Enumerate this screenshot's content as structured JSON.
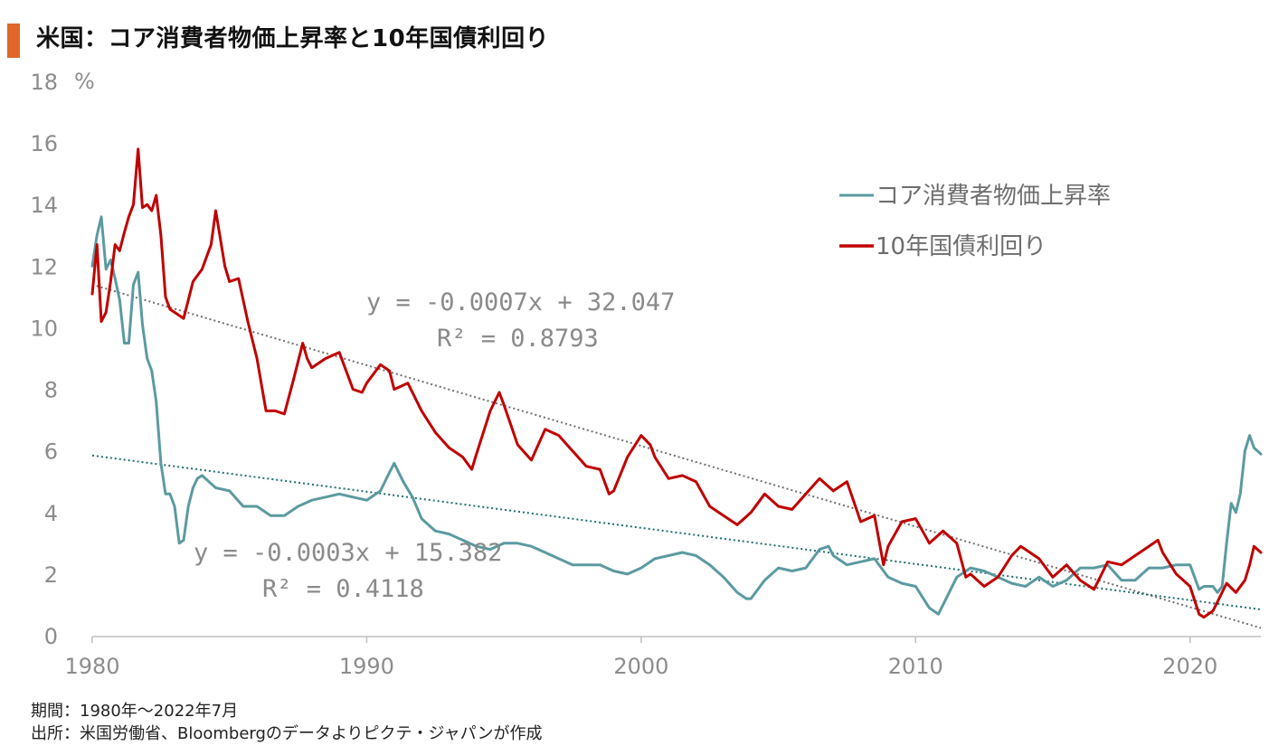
{
  "title": "米国：コア消費者物価上昇率と10年国債利回り",
  "footnotes": {
    "period": "期間：1980年～2022年7月",
    "source": "出所：米国労働省、Bloombergのデータよりピクテ・ジャパンが作成"
  },
  "colors": {
    "title_accent": "#e0662a",
    "core_cpi": "#5b9aa0",
    "treasury_10y": "#c00000",
    "trend_cpi": "#1f6f6f",
    "trend_10y": "#6f6f6f"
  },
  "chart_data": {
    "type": "line",
    "title": "米国：コア消費者物価上昇率と10年国債利回り",
    "ylabel": "%",
    "ylim": [
      0,
      18
    ],
    "yticks": [
      0,
      2,
      4,
      6,
      8,
      10,
      12,
      14,
      16,
      18
    ],
    "xlim": [
      1980,
      2022.58
    ],
    "xticks": [
      1980,
      1990,
      2000,
      2010,
      2020
    ],
    "grid": false,
    "legend_position": "top-right",
    "series": [
      {
        "name": "コア消費者物価上昇率",
        "color": "#5b9aa0",
        "x": [
          1980.0,
          1980.17,
          1980.33,
          1980.5,
          1980.67,
          1980.83,
          1981.0,
          1981.17,
          1981.33,
          1981.5,
          1981.67,
          1981.83,
          1982.0,
          1982.17,
          1982.33,
          1982.5,
          1982.67,
          1982.83,
          1983.0,
          1983.17,
          1983.33,
          1983.5,
          1983.67,
          1983.83,
          1984.0,
          1984.5,
          1985.0,
          1985.5,
          1986.0,
          1986.5,
          1987.0,
          1987.5,
          1988.0,
          1988.5,
          1989.0,
          1989.5,
          1990.0,
          1990.5,
          1990.83,
          1991.0,
          1991.33,
          1991.67,
          1992.0,
          1992.5,
          1993.0,
          1993.5,
          1994.0,
          1994.5,
          1995.0,
          1995.5,
          1996.0,
          1996.5,
          1997.0,
          1997.5,
          1998.0,
          1998.5,
          1999.0,
          1999.5,
          2000.0,
          2000.5,
          2001.0,
          2001.5,
          2002.0,
          2002.5,
          2003.0,
          2003.5,
          2003.83,
          2004.0,
          2004.5,
          2005.0,
          2005.5,
          2006.0,
          2006.5,
          2006.83,
          2007.0,
          2007.5,
          2008.0,
          2008.5,
          2009.0,
          2009.5,
          2010.0,
          2010.5,
          2010.83,
          2011.0,
          2011.5,
          2012.0,
          2012.5,
          2013.0,
          2013.5,
          2014.0,
          2014.5,
          2015.0,
          2015.5,
          2016.0,
          2016.5,
          2017.0,
          2017.5,
          2018.0,
          2018.5,
          2019.0,
          2019.5,
          2020.0,
          2020.33,
          2020.5,
          2020.83,
          2021.0,
          2021.17,
          2021.33,
          2021.5,
          2021.67,
          2021.83,
          2022.0,
          2022.17,
          2022.33,
          2022.58
        ],
        "values": [
          12.0,
          13.0,
          13.6,
          11.9,
          12.2,
          11.6,
          10.9,
          9.5,
          9.5,
          11.4,
          11.8,
          10.1,
          9.0,
          8.6,
          7.6,
          5.6,
          4.6,
          4.6,
          4.2,
          3.0,
          3.1,
          4.2,
          4.8,
          5.1,
          5.2,
          4.8,
          4.7,
          4.2,
          4.2,
          3.9,
          3.9,
          4.2,
          4.4,
          4.5,
          4.6,
          4.5,
          4.4,
          4.7,
          5.3,
          5.6,
          5.0,
          4.5,
          3.8,
          3.4,
          3.3,
          3.1,
          2.9,
          2.8,
          3.0,
          3.0,
          2.9,
          2.7,
          2.5,
          2.3,
          2.3,
          2.3,
          2.1,
          2.0,
          2.2,
          2.5,
          2.6,
          2.7,
          2.6,
          2.3,
          1.9,
          1.4,
          1.2,
          1.2,
          1.8,
          2.2,
          2.1,
          2.2,
          2.8,
          2.9,
          2.6,
          2.3,
          2.4,
          2.5,
          1.9,
          1.7,
          1.6,
          0.9,
          0.7,
          1.0,
          1.9,
          2.2,
          2.1,
          1.9,
          1.7,
          1.6,
          1.9,
          1.6,
          1.8,
          2.2,
          2.2,
          2.3,
          1.8,
          1.8,
          2.2,
          2.2,
          2.3,
          2.3,
          1.5,
          1.6,
          1.6,
          1.4,
          1.6,
          3.0,
          4.3,
          4.0,
          4.6,
          6.0,
          6.5,
          6.1,
          5.9
        ]
      },
      {
        "name": "10年国債利回り",
        "color": "#c00000",
        "x": [
          1980.0,
          1980.17,
          1980.33,
          1980.5,
          1980.67,
          1980.83,
          1981.0,
          1981.17,
          1981.33,
          1981.5,
          1981.67,
          1981.83,
          1982.0,
          1982.17,
          1982.33,
          1982.5,
          1982.67,
          1982.83,
          1983.0,
          1983.33,
          1983.67,
          1984.0,
          1984.33,
          1984.5,
          1984.83,
          1985.0,
          1985.33,
          1985.67,
          1986.0,
          1986.33,
          1986.67,
          1987.0,
          1987.33,
          1987.67,
          1987.83,
          1988.0,
          1988.5,
          1989.0,
          1989.5,
          1989.83,
          1990.0,
          1990.5,
          1990.83,
          1991.0,
          1991.5,
          1992.0,
          1992.5,
          1993.0,
          1993.5,
          1993.83,
          1994.0,
          1994.5,
          1994.83,
          1995.0,
          1995.5,
          1996.0,
          1996.5,
          1997.0,
          1997.5,
          1998.0,
          1998.5,
          1998.83,
          1999.0,
          1999.5,
          2000.0,
          2000.33,
          2000.5,
          2001.0,
          2001.5,
          2002.0,
          2002.5,
          2003.0,
          2003.5,
          2004.0,
          2004.5,
          2005.0,
          2005.5,
          2006.0,
          2006.5,
          2007.0,
          2007.5,
          2008.0,
          2008.5,
          2008.83,
          2009.0,
          2009.5,
          2010.0,
          2010.5,
          2011.0,
          2011.5,
          2011.83,
          2012.0,
          2012.5,
          2013.0,
          2013.5,
          2013.83,
          2014.0,
          2014.5,
          2015.0,
          2015.5,
          2016.0,
          2016.5,
          2017.0,
          2017.5,
          2018.0,
          2018.5,
          2018.83,
          2019.0,
          2019.5,
          2020.0,
          2020.33,
          2020.5,
          2020.83,
          2021.0,
          2021.33,
          2021.67,
          2022.0,
          2022.17,
          2022.33,
          2022.58
        ],
        "values": [
          11.1,
          12.7,
          10.2,
          10.5,
          11.5,
          12.7,
          12.5,
          13.1,
          13.6,
          14.0,
          15.8,
          13.9,
          14.0,
          13.8,
          14.3,
          13.0,
          11.0,
          10.6,
          10.5,
          10.3,
          11.5,
          11.9,
          12.7,
          13.8,
          12.0,
          11.5,
          11.6,
          10.2,
          9.0,
          7.3,
          7.3,
          7.2,
          8.3,
          9.5,
          9.0,
          8.7,
          9.0,
          9.2,
          8.0,
          7.9,
          8.2,
          8.8,
          8.6,
          8.0,
          8.2,
          7.3,
          6.6,
          6.1,
          5.8,
          5.4,
          5.9,
          7.3,
          7.9,
          7.5,
          6.2,
          5.7,
          6.7,
          6.5,
          6.0,
          5.5,
          5.4,
          4.6,
          4.7,
          5.8,
          6.5,
          6.2,
          5.8,
          5.1,
          5.2,
          5.0,
          4.2,
          3.9,
          3.6,
          4.0,
          4.6,
          4.2,
          4.1,
          4.6,
          5.1,
          4.7,
          5.0,
          3.7,
          3.9,
          2.3,
          2.9,
          3.7,
          3.8,
          3.0,
          3.4,
          3.0,
          1.9,
          2.0,
          1.6,
          1.9,
          2.6,
          2.9,
          2.8,
          2.5,
          1.9,
          2.3,
          1.8,
          1.5,
          2.4,
          2.3,
          2.6,
          2.9,
          3.1,
          2.7,
          2.0,
          1.6,
          0.7,
          0.6,
          0.8,
          1.1,
          1.7,
          1.4,
          1.8,
          2.3,
          2.9,
          2.7
        ]
      }
    ],
    "trendlines": [
      {
        "series": "10年国債利回り",
        "equation": "y = -0.0007x + 32.047",
        "r2": "R² = 0.8793",
        "from": [
          1980,
          11.4
        ],
        "to": [
          2022.58,
          0.25
        ]
      },
      {
        "series": "コア消費者物価上昇率",
        "equation": "y = -0.0003x + 15.382",
        "r2": "R² = 0.4118",
        "from": [
          1980,
          5.85
        ],
        "to": [
          2022.58,
          0.85
        ]
      }
    ]
  }
}
